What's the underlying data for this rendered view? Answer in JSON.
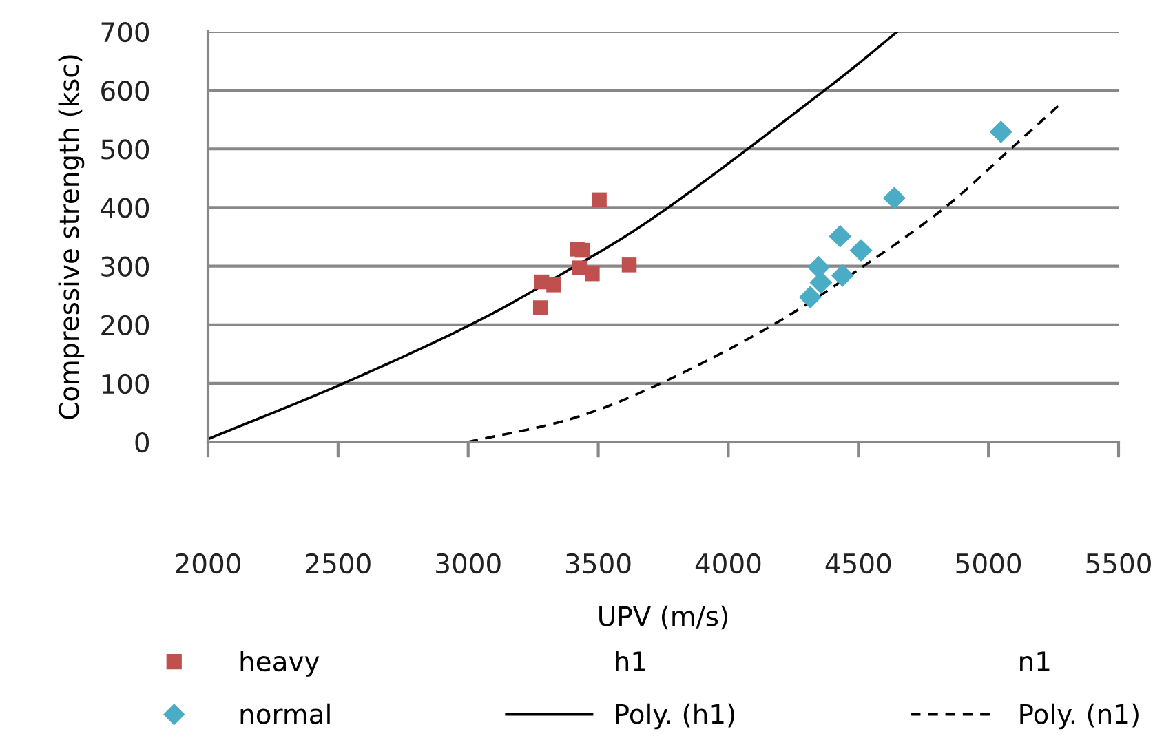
{
  "chart_data": {
    "type": "scatter",
    "xlabel": "UPV (m/s)",
    "ylabel": "Compressive strength (ksc)",
    "xlim": [
      2000,
      5500
    ],
    "xticks": [
      2000,
      2500,
      3000,
      3500,
      4000,
      4500,
      5000,
      5500
    ],
    "ylim": [
      0,
      700
    ],
    "yticks": [
      0,
      100,
      200,
      300,
      400,
      500,
      600,
      700
    ],
    "grid": "y",
    "legend": "bottom",
    "series": [
      {
        "name": "heavy",
        "marker": "square",
        "color": "#c0504d",
        "x": [
          3504,
          3619,
          3421,
          3439,
          3428,
          3477,
          3283,
          3329,
          3278
        ],
        "values": [
          413,
          302,
          329,
          327,
          297,
          287,
          273,
          268,
          229
        ]
      },
      {
        "name": "h1",
        "marker": "none"
      },
      {
        "name": "n1",
        "marker": "none"
      },
      {
        "name": "normal",
        "marker": "diamond",
        "color": "#4bacc6",
        "x": [
          5048,
          4638,
          4430,
          4510,
          4347,
          4439,
          4356,
          4315
        ],
        "values": [
          529,
          416,
          351,
          327,
          298,
          284,
          272,
          247
        ]
      },
      {
        "name": "Poly. (h1)",
        "type": "line",
        "marker": "none",
        "line_style": "solid",
        "color": "#000000",
        "x": [
          2000,
          2500,
          3000,
          3350,
          3750,
          4370,
          4650
        ],
        "values": [
          5,
          96,
          198,
          284,
          394,
          600,
          700
        ]
      },
      {
        "name": "Poly. (n1)",
        "type": "line",
        "marker": "none",
        "line_style": "dashed",
        "color": "#000000",
        "x": [
          3000,
          3400,
          3740,
          4165,
          4520,
          4830,
          5080,
          5270
        ],
        "values": [
          0,
          40,
          100,
          198,
          300,
          399,
          498,
          574
        ]
      }
    ]
  }
}
